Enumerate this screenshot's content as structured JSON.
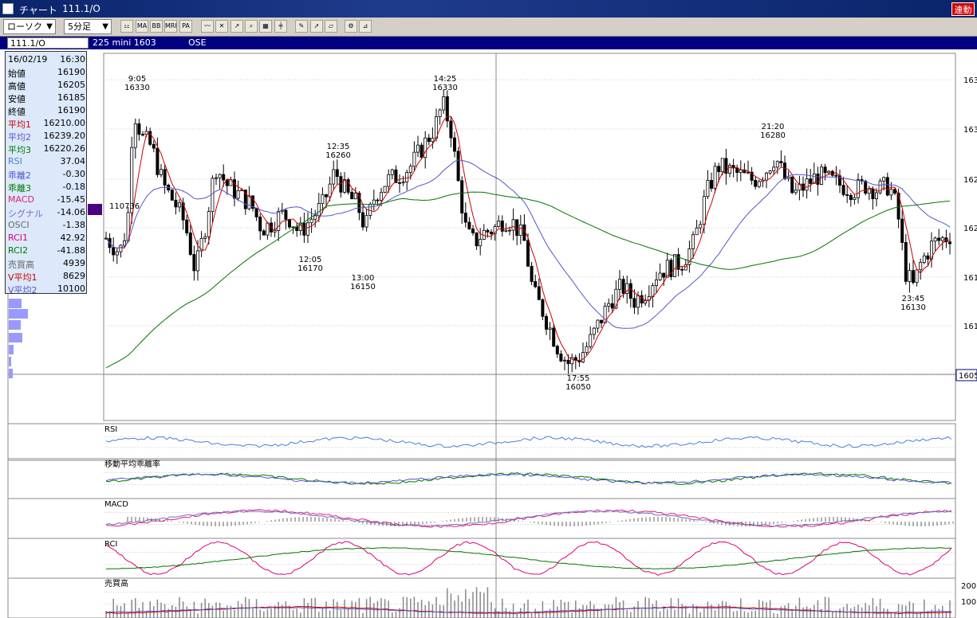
{
  "window": {
    "title": "チャート",
    "code_title": "111.1/O",
    "link_label": "連動"
  },
  "toolbar": {
    "chart_type": "ローソク",
    "interval": "5分足",
    "buttons": [
      "chart-type-icon",
      "ma-icon",
      "bb-icon",
      "mre-icon",
      "pa-icon",
      "line-icon",
      "cross-icon",
      "cursor-select-icon",
      "zoom-icon",
      "table-icon",
      "divider-icon",
      "pen-icon",
      "pointer-icon",
      "eraser-icon",
      "settings-gear-icon",
      "measure-icon"
    ],
    "button_labels": {
      "ma": "MA",
      "bb": "BB",
      "mre": "MRE",
      "pa": "PA"
    }
  },
  "instrument": {
    "code": "111.1/O",
    "name": "225 mini 1603",
    "market": "OSE"
  },
  "data_panel": [
    {
      "label": "16/02/19",
      "value": "16:30",
      "color": "#000000"
    },
    {
      "label": "始値",
      "value": "16190",
      "color": "#000000"
    },
    {
      "label": "高値",
      "value": "16205",
      "color": "#000000"
    },
    {
      "label": "安値",
      "value": "16185",
      "color": "#000000"
    },
    {
      "label": "終値",
      "value": "16190",
      "color": "#000000"
    },
    {
      "label": "平均1",
      "value": "16210.00",
      "color": "#cc0000"
    },
    {
      "label": "平均2",
      "value": "16239.20",
      "color": "#5555cc"
    },
    {
      "label": "平均3",
      "value": "16220.26",
      "color": "#007700"
    },
    {
      "label": "RSI",
      "value": "37.04",
      "color": "#4a7fd8"
    },
    {
      "label": "乖離2",
      "value": "-0.30",
      "color": "#5555cc"
    },
    {
      "label": "乖離3",
      "value": "-0.18",
      "color": "#007700"
    },
    {
      "label": "MACD",
      "value": "-15.45",
      "color": "#dd2277"
    },
    {
      "label": "シグナル",
      "value": "-14.06",
      "color": "#7766cc"
    },
    {
      "label": "OSCI",
      "value": "-1.38",
      "color": "#666666"
    },
    {
      "label": "RCI1",
      "value": "42.92",
      "color": "#dd0077"
    },
    {
      "label": "RCI2",
      "value": "-41.88",
      "color": "#007700"
    },
    {
      "label": "売買高",
      "value": "4939",
      "color": "#666666"
    },
    {
      "label": "V平均1",
      "value": "8629",
      "color": "#cc0000"
    },
    {
      "label": "V平均2",
      "value": "10100",
      "color": "#5555cc"
    }
  ],
  "price_axis": [
    "163",
    "163",
    "162",
    "162",
    "161",
    "161"
  ],
  "price_axis_current": "1605",
  "marker_label": "110736",
  "annotations": [
    {
      "time": "9:05",
      "price": "16330"
    },
    {
      "time": "14:25",
      "price": "16330"
    },
    {
      "time": "12:35",
      "price": "16260"
    },
    {
      "time": "21:20",
      "price": "16280"
    },
    {
      "time": "12:05",
      "price": "16170"
    },
    {
      "time": "13:00",
      "price": "16150"
    },
    {
      "time": "17:55",
      "price": "16050"
    },
    {
      "time": "23:45",
      "price": "16130"
    }
  ],
  "sub_panels": {
    "rsi": "RSI",
    "deviation": "移動平均乖離率",
    "macd": "MACD",
    "rci": "RCI",
    "volume": "売買高",
    "volume_axis": [
      "200",
      "100"
    ]
  },
  "colors": {
    "ma1": "#cc0000",
    "ma2": "#5555cc",
    "ma3": "#007700",
    "macd": "#dd2277",
    "signal": "#7766cc",
    "rsi": "#4a7fd8",
    "rci1": "#dd0077",
    "rci2": "#007700"
  }
}
